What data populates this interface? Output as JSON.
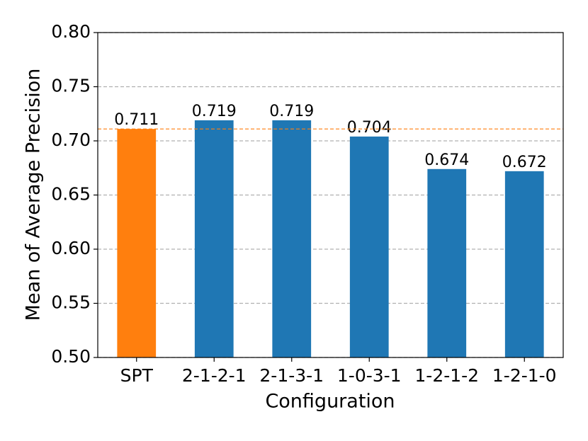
{
  "chart_data": {
    "type": "bar",
    "x_label": "Configuration",
    "y_label": "Mean of Average Precision",
    "categories": [
      "SPT",
      "2-1-2-1",
      "2-1-3-1",
      "1-0-3-1",
      "1-2-1-2",
      "1-2-1-0"
    ],
    "values": [
      0.711,
      0.719,
      0.719,
      0.704,
      0.674,
      0.672
    ],
    "colors": [
      "#ff7f0e",
      "#1f77b4",
      "#1f77b4",
      "#1f77b4",
      "#1f77b4",
      "#1f77b4"
    ],
    "reference_line": {
      "value": 0.711,
      "color": "#ff7f0e"
    },
    "ylim": [
      0.5,
      0.8
    ],
    "yticks": [
      {
        "value": 0.5,
        "label": "0.50"
      },
      0.55,
      {
        "value": 0.6,
        "label": "0.60"
      },
      0.65,
      {
        "value": 0.7,
        "label": "0.70"
      },
      0.75,
      {
        "value": 0.8,
        "label": "0.80"
      }
    ],
    "grid": true
  }
}
